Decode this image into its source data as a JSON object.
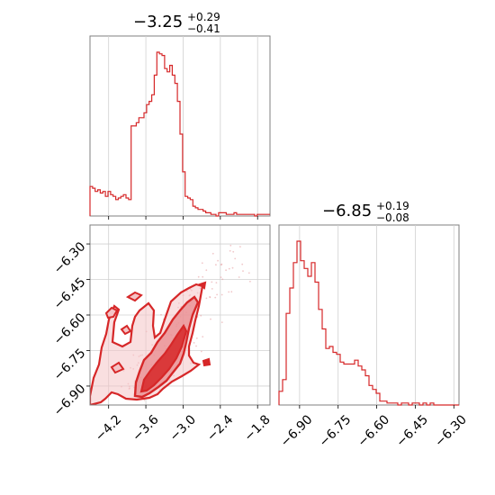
{
  "chart_data": [
    {
      "type": "histogram",
      "panel": "marginal-x",
      "title": {
        "median": "−3.25",
        "plus": "+0.29",
        "minus": "−0.41"
      },
      "xlim": [
        -4.5,
        -1.6
      ],
      "xticks": [
        -4.2,
        -3.6,
        -3.0,
        -2.4,
        -1.8
      ],
      "xtick_labels": [
        "−4.2",
        "−3.6",
        "−3.0",
        "−2.4",
        "−1.8"
      ],
      "grid": true,
      "color": "#d62728",
      "bin_edges_x": [
        -4.5,
        -1.6
      ],
      "counts": [
        0.18,
        0.17,
        0.15,
        0.16,
        0.14,
        0.15,
        0.12,
        0.15,
        0.13,
        0.12,
        0.1,
        0.11,
        0.12,
        0.13,
        0.11,
        0.1,
        0.55,
        0.55,
        0.57,
        0.6,
        0.6,
        0.63,
        0.68,
        0.7,
        0.74,
        0.86,
        1.0,
        0.99,
        0.98,
        0.9,
        0.88,
        0.92,
        0.86,
        0.81,
        0.7,
        0.5,
        0.27,
        0.12,
        0.11,
        0.1,
        0.06,
        0.05,
        0.04,
        0.04,
        0.03,
        0.02,
        0.02,
        0.01,
        0.01,
        0.0,
        0.02,
        0.02,
        0.02,
        0.01,
        0.01,
        0.01,
        0.02,
        0.01,
        0.01,
        0.01,
        0.01,
        0.01,
        0.01,
        0.01,
        0.0,
        0.01,
        0.01,
        0.01,
        0.01,
        0.01
      ]
    },
    {
      "type": "histogram",
      "panel": "marginal-y",
      "title": {
        "median": "−6.85",
        "plus": "+0.19",
        "minus": "−0.08"
      },
      "xlim": [
        -6.98,
        -6.28
      ],
      "xticks": [
        -6.9,
        -6.75,
        -6.6,
        -6.45,
        -6.3
      ],
      "xtick_labels": [
        "−6.90",
        "−6.75",
        "−6.60",
        "−6.45",
        "−6.30"
      ],
      "grid": true,
      "color": "#d62728",
      "counts": [
        0.07,
        0.13,
        0.47,
        0.6,
        0.73,
        0.84,
        0.74,
        0.7,
        0.66,
        0.73,
        0.63,
        0.49,
        0.39,
        0.29,
        0.3,
        0.27,
        0.26,
        0.22,
        0.21,
        0.21,
        0.21,
        0.23,
        0.2,
        0.18,
        0.15,
        0.1,
        0.08,
        0.06,
        0.02,
        0.02,
        0.01,
        0.01,
        0.01,
        0.0,
        0.01,
        0.01,
        0.0,
        0.01,
        0.01,
        0.0,
        0.01,
        0.0,
        0.01,
        0.0,
        0.0,
        0.0,
        0.0,
        0.0,
        0.0,
        0.0
      ]
    },
    {
      "type": "contour",
      "panel": "joint",
      "xlim": [
        -4.5,
        -1.6
      ],
      "ylim": [
        -6.98,
        -6.22
      ],
      "xticks": [
        -4.2,
        -3.6,
        -3.0,
        -2.4,
        -1.8
      ],
      "xtick_labels": [
        "−4.2",
        "−3.6",
        "−3.0",
        "−2.4",
        "−1.8"
      ],
      "yticks": [
        -6.3,
        -6.45,
        -6.6,
        -6.75,
        -6.9
      ],
      "ytick_labels": [
        "−6.30",
        "−6.45",
        "−6.60",
        "−6.75",
        "−6.90"
      ],
      "grid": true,
      "color": "#d62728"
    }
  ]
}
